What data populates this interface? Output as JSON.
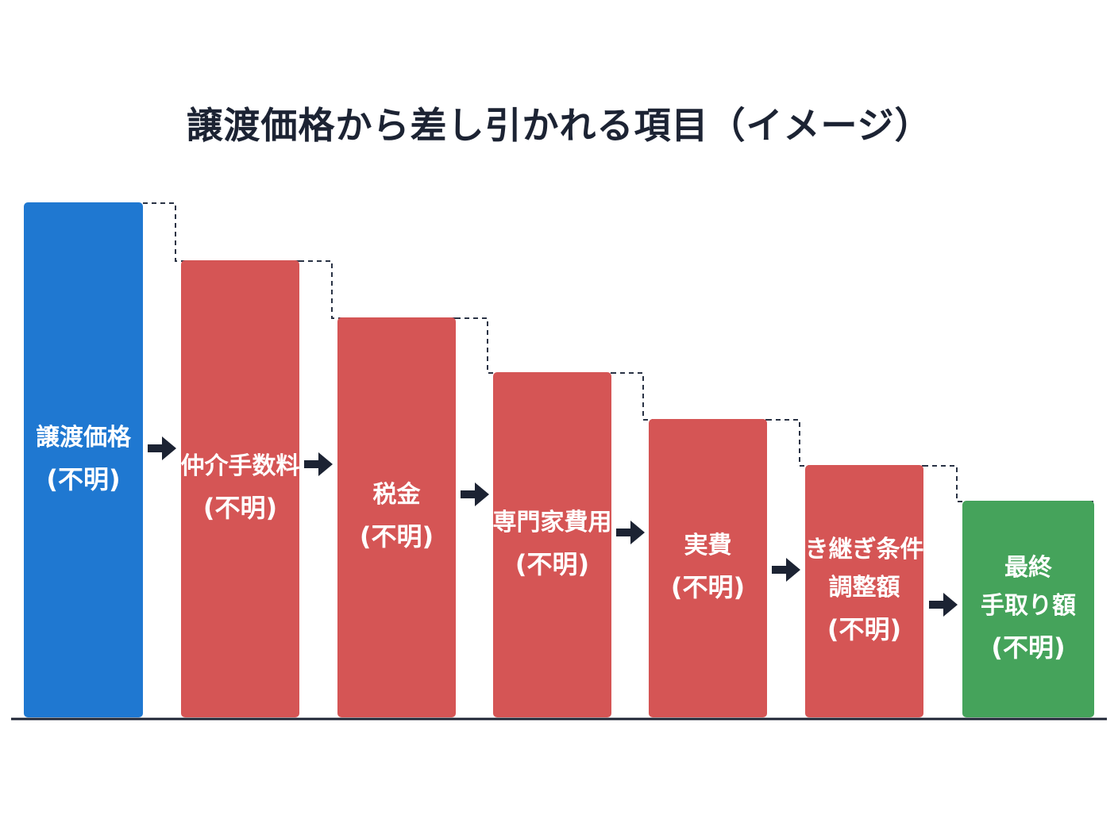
{
  "title": "譲渡価格から差し引かれる項目（イメージ）",
  "colors": {
    "start": "#1f78d1",
    "deduction": "#d55555",
    "result": "#45a35b",
    "arrow": "#1c2333",
    "axis": "#1c2333",
    "connector": "#2a3345"
  },
  "steps": [
    {
      "lines": [
        "譲渡価格"
      ],
      "note": "(不明)",
      "kind": "start"
    },
    {
      "lines": [
        "仲介手数料"
      ],
      "note": "(不明)",
      "kind": "deduction"
    },
    {
      "lines": [
        "税金"
      ],
      "note": "(不明)",
      "kind": "deduction"
    },
    {
      "lines": [
        "専門家費用"
      ],
      "note": "(不明)",
      "kind": "deduction"
    },
    {
      "lines": [
        "実費"
      ],
      "note": "(不明)",
      "kind": "deduction"
    },
    {
      "lines": [
        "引き継ぎ条件・",
        "調整額"
      ],
      "note": "(不明)",
      "kind": "deduction"
    },
    {
      "lines": [
        "最終",
        "手取り額"
      ],
      "note": "(不明)",
      "kind": "result"
    }
  ]
}
